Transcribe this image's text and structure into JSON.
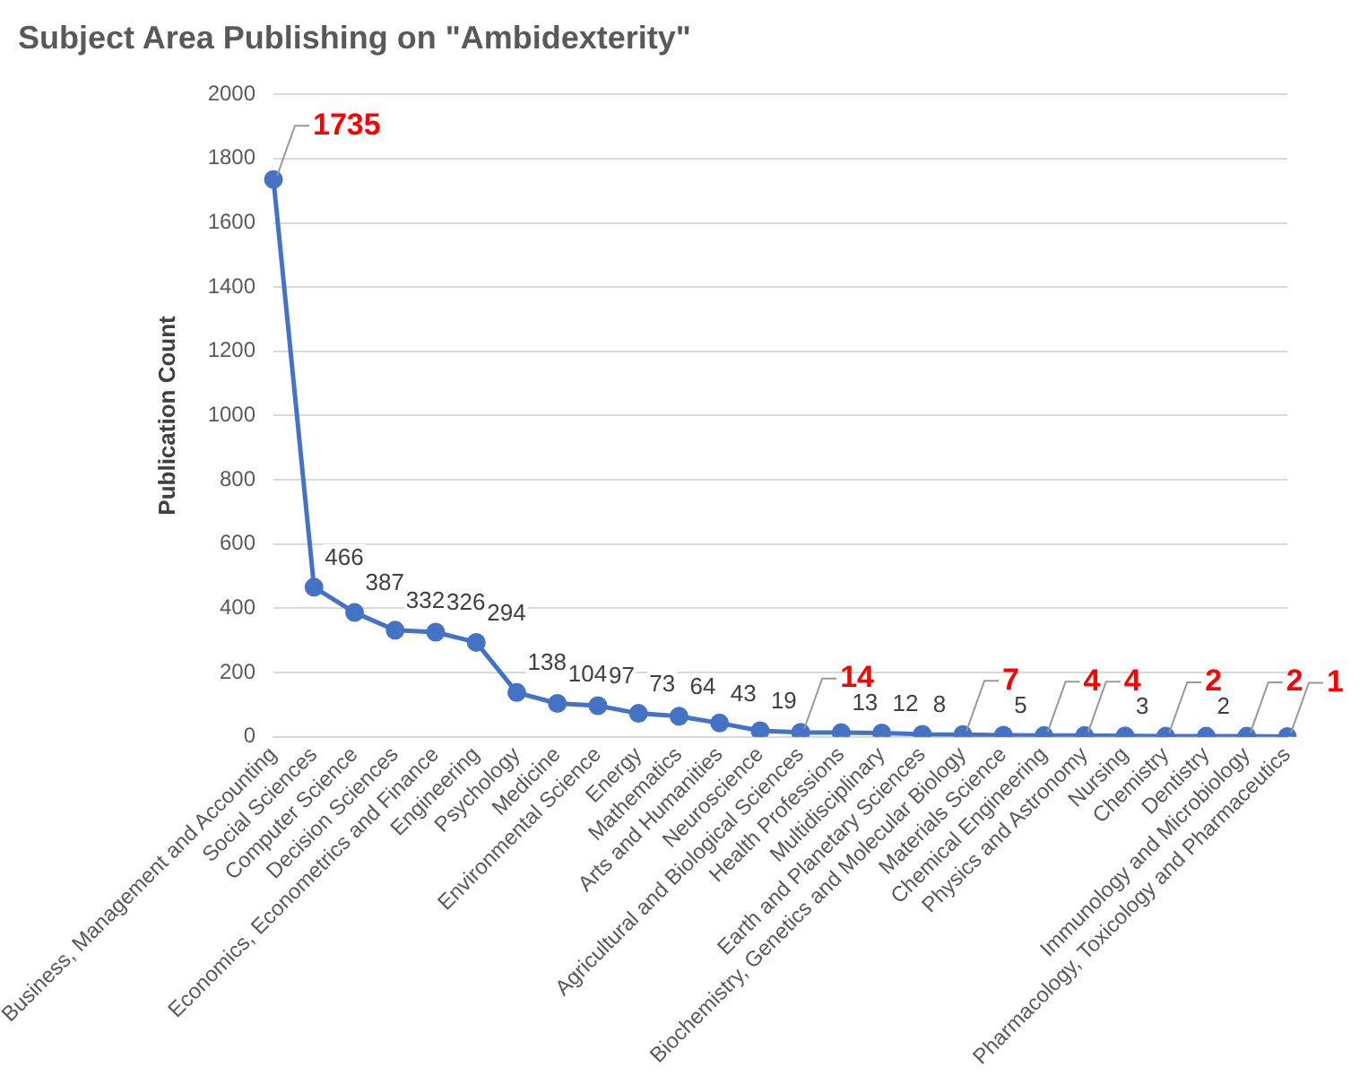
{
  "chart_data": {
    "type": "line",
    "title": "Subject Area Publishing on \"Ambidexterity\"",
    "ylabel": "Publication Count",
    "categories": [
      "Business, Management and Accounting",
      "Social Sciences",
      "Computer Science",
      "Decision Sciences",
      "Economics, Econometrics and Finance",
      "Engineering",
      "Psychology",
      "Medicine",
      "Environmental Science",
      "Energy",
      "Mathematics",
      "Arts and Humanities",
      "Neuroscience",
      "Agricultural and Biological Sciences",
      "Health Professions",
      "Multidisciplinary",
      "Earth and Planetary Sciences",
      "Biochemistry, Genetics and Molecular Biology",
      "Materials Science",
      "Chemical Engineering",
      "Physics and Astronomy",
      "Nursing",
      "Chemistry",
      "Dentistry",
      "Immunology and Microbiology",
      "Pharmacology, Toxicology and Pharmaceutics"
    ],
    "values": [
      1735,
      466,
      387,
      332,
      326,
      294,
      138,
      104,
      97,
      73,
      64,
      43,
      19,
      14,
      13,
      12,
      8,
      7,
      5,
      4,
      4,
      3,
      2,
      2,
      2,
      1
    ],
    "value_labels": [
      null,
      "466",
      "387",
      "332",
      "326",
      "294",
      "138",
      "104",
      "97",
      "73",
      "64",
      "43",
      "19",
      null,
      "13",
      "12",
      "8",
      null,
      "5",
      null,
      null,
      "3",
      null,
      "2",
      null,
      null
    ],
    "color": "#4472c4",
    "marker": "circle",
    "grid": "y",
    "ylim": [
      0,
      2000
    ],
    "yticks": [
      0,
      200,
      400,
      600,
      800,
      1000,
      1200,
      1400,
      1600,
      1800,
      2000
    ],
    "annotations": [
      {
        "text": "1735",
        "x": "Business, Management and Accounting",
        "y": 1735
      },
      {
        "text": "14",
        "x": "Agricultural and Biological Sciences",
        "y": 14
      },
      {
        "text": "7",
        "x": "Biochemistry, Genetics and Molecular Biology",
        "y": 7
      },
      {
        "text": "4",
        "x": "Chemical Engineering",
        "y": 4
      },
      {
        "text": "4",
        "x": "Physics and Astronomy",
        "y": 4
      },
      {
        "text": "2",
        "x": "Chemistry",
        "y": 2
      },
      {
        "text": "2",
        "x": "Immunology and Microbiology",
        "y": 2
      },
      {
        "text": "1",
        "x": "Pharmacology, Toxicology and Pharmaceutics",
        "y": 1
      }
    ]
  }
}
